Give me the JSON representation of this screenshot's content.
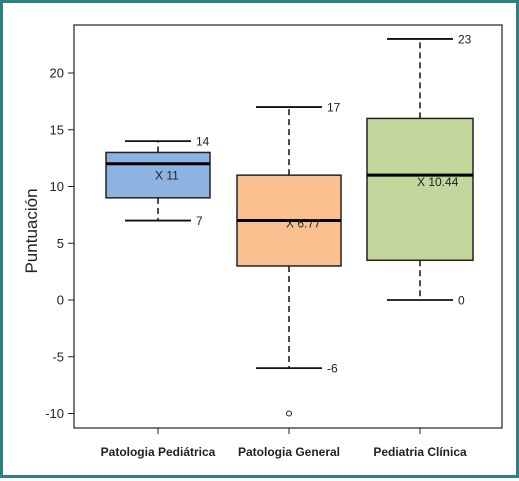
{
  "chart_data": {
    "type": "boxplot",
    "title": "",
    "xlabel": "",
    "ylabel": "Puntuación",
    "ylim": [
      -11.5,
      25
    ],
    "yticks": [
      -10,
      -5,
      0,
      5,
      10,
      15,
      20
    ],
    "ytick_labels": [
      "-10",
      "-5",
      "0",
      "5",
      "10",
      "15",
      "20"
    ],
    "grid": false,
    "legend": "none",
    "categories": [
      "Patologia Pediátrica",
      "Patologia General",
      "Pediatria Clínica"
    ],
    "series": [
      {
        "category": "Patologia Pediátrica",
        "min": 7,
        "q1": 9,
        "median": 12,
        "q3": 13,
        "max": 14,
        "mean": 11,
        "mean_label": "X 11",
        "min_label": "7",
        "max_label": "14",
        "outliers": [],
        "color": "#8db3e2"
      },
      {
        "category": "Patologia General",
        "min": -6,
        "q1": 3,
        "median": 7,
        "q3": 11,
        "max": 17,
        "mean": 6.77,
        "mean_label": "X 6.77",
        "min_label": "-6",
        "max_label": "17",
        "outliers": [
          -10
        ],
        "color": "#fac090"
      },
      {
        "category": "Pediatria Clínica",
        "min": 0,
        "q1": 3.5,
        "median": 11,
        "q3": 16,
        "max": 23,
        "mean": 10.44,
        "mean_label": "X 10.44",
        "min_label": "0",
        "max_label": "23",
        "outliers": [],
        "color": "#c3d69b"
      }
    ]
  }
}
